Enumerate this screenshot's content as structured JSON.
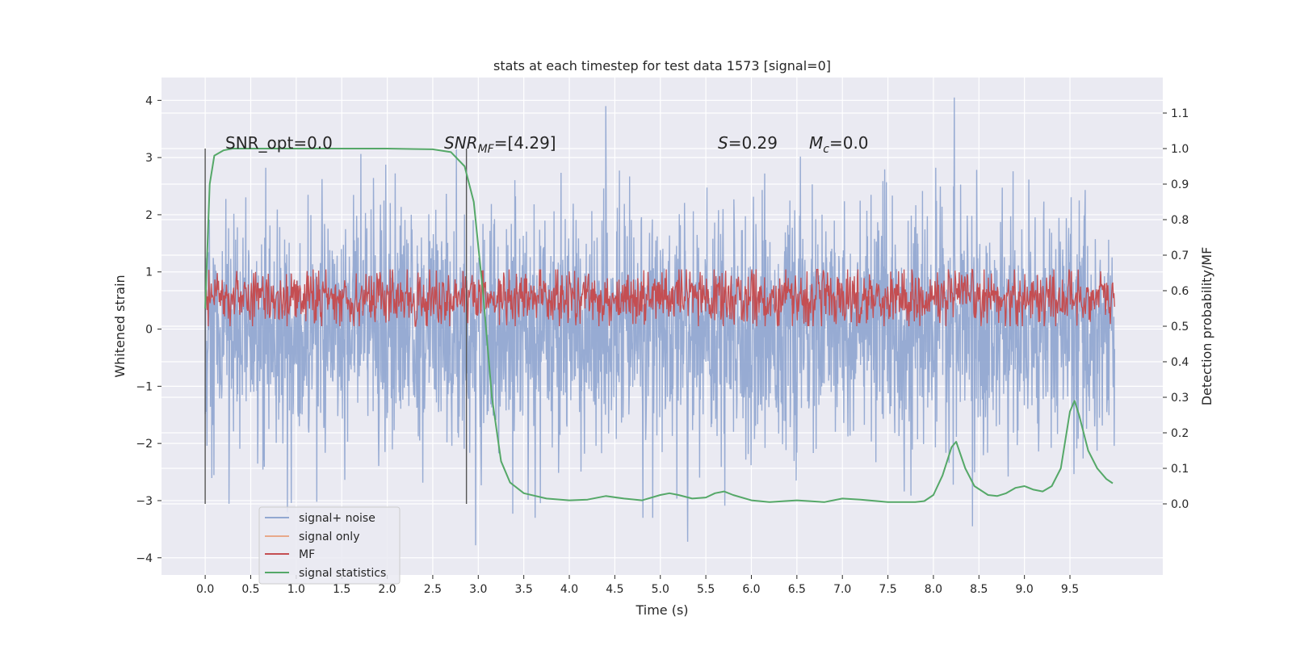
{
  "chart_data": {
    "type": "line",
    "title": "stats at each timestep for test data 1573 [signal=0]",
    "xlabel": "Time (s)",
    "ylabel_left": "Whitened strain",
    "ylabel_right": "Detection probability/MF",
    "xlim": [
      -0.48,
      10.52
    ],
    "ylim_left": [
      -4.3,
      4.4
    ],
    "ylim_right": [
      -0.2,
      1.2
    ],
    "x_ticks": [
      "0.0",
      "0.5",
      "1.0",
      "1.5",
      "2.0",
      "2.5",
      "3.0",
      "3.5",
      "4.0",
      "4.5",
      "5.0",
      "5.5",
      "6.0",
      "6.5",
      "7.0",
      "7.5",
      "8.0",
      "8.5",
      "9.0",
      "9.5"
    ],
    "y_ticks_left": [
      "4",
      "3",
      "2",
      "1",
      "0",
      "−1",
      "−2",
      "−3",
      "−4"
    ],
    "y_ticks_right": [
      "1.1",
      "1.0",
      "0.9",
      "0.8",
      "0.7",
      "0.6",
      "0.5",
      "0.4",
      "0.3",
      "0.2",
      "0.1",
      "0.0"
    ],
    "grid": true,
    "legend_position": "lower-left",
    "legend": [
      "signal+ noise",
      "signal only",
      "MF",
      "signal statistics"
    ],
    "annotations": {
      "snr_opt": "SNR_opt=0.0",
      "snr_mf_main": "SNR",
      "snr_mf_sub": "MF",
      "snr_mf_value": "=[4.29]",
      "s_main": "S",
      "s_value": "=0.29",
      "mc_main": "M",
      "mc_sub": "c",
      "mc_value": "=0.0"
    },
    "vertical_markers_x": [
      0.0,
      2.87
    ],
    "series": [
      {
        "name": "signal+ noise",
        "axis": "left",
        "color": "#92a8d1",
        "x_range": [
          0.0,
          9.99
        ],
        "approx_range": [
          -3.8,
          4.05
        ],
        "notable_peaks": [
          [
            4.4,
            3.9
          ],
          [
            8.23,
            4.05
          ],
          [
            2.97,
            -3.78
          ],
          [
            5.3,
            -3.72
          ],
          [
            8.43,
            -3.45
          ]
        ]
      },
      {
        "name": "signal only",
        "axis": "left",
        "color": "#e8a98a",
        "values": []
      },
      {
        "name": "MF",
        "axis": "right",
        "color": "#c44e52",
        "x_range": [
          0.0,
          9.99
        ],
        "approx_range": [
          0.5,
          0.66
        ]
      },
      {
        "name": "signal statistics",
        "axis": "right",
        "color": "#55a868",
        "x": [
          0.0,
          0.05,
          0.1,
          0.2,
          0.3,
          0.5,
          1.0,
          1.5,
          2.0,
          2.5,
          2.7,
          2.85,
          2.95,
          3.05,
          3.15,
          3.25,
          3.35,
          3.5,
          3.75,
          4.0,
          4.2,
          4.4,
          4.6,
          4.8,
          5.0,
          5.1,
          5.2,
          5.35,
          5.5,
          5.6,
          5.7,
          5.8,
          6.0,
          6.2,
          6.5,
          6.8,
          7.0,
          7.2,
          7.5,
          7.8,
          7.9,
          8.0,
          8.1,
          8.2,
          8.25,
          8.35,
          8.45,
          8.6,
          8.7,
          8.8,
          8.9,
          9.0,
          9.1,
          9.2,
          9.3,
          9.4,
          9.5,
          9.55,
          9.6,
          9.7,
          9.8,
          9.9,
          9.97
        ],
        "values": [
          0.55,
          0.9,
          0.98,
          0.995,
          1.0,
          1.0,
          1.0,
          1.0,
          1.0,
          0.998,
          0.99,
          0.95,
          0.85,
          0.6,
          0.3,
          0.12,
          0.06,
          0.03,
          0.015,
          0.01,
          0.012,
          0.022,
          0.015,
          0.01,
          0.025,
          0.03,
          0.025,
          0.015,
          0.018,
          0.03,
          0.035,
          0.025,
          0.01,
          0.005,
          0.01,
          0.005,
          0.015,
          0.012,
          0.005,
          0.005,
          0.008,
          0.025,
          0.08,
          0.16,
          0.175,
          0.1,
          0.05,
          0.025,
          0.022,
          0.03,
          0.045,
          0.05,
          0.04,
          0.035,
          0.05,
          0.1,
          0.26,
          0.29,
          0.25,
          0.15,
          0.1,
          0.07,
          0.058
        ]
      }
    ]
  }
}
